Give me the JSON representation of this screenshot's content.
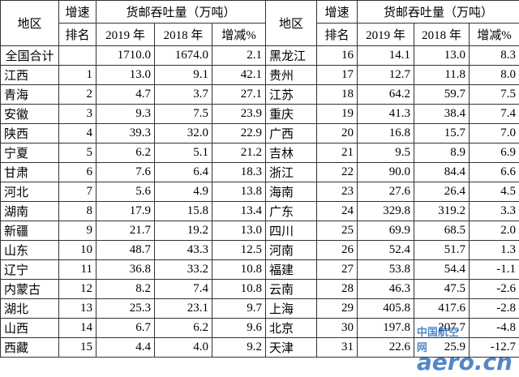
{
  "table": {
    "header": {
      "region": "地区",
      "rank_top": "增速",
      "rank_bottom": "排名",
      "group": "货邮吞吐量（万吨）",
      "y2019": "2019 年",
      "y2018": "2018 年",
      "change": "增减%"
    },
    "rows": [
      [
        "全国合计",
        "",
        "1710.0",
        "1674.0",
        "2.1",
        "黑龙江",
        "16",
        "14.1",
        "13.0",
        "8.3"
      ],
      [
        "江西",
        "1",
        "13.0",
        "9.1",
        "42.1",
        "贵州",
        "17",
        "12.7",
        "11.8",
        "8.0"
      ],
      [
        "青海",
        "2",
        "4.7",
        "3.7",
        "27.1",
        "江苏",
        "18",
        "64.2",
        "59.7",
        "7.5"
      ],
      [
        "安徽",
        "3",
        "9.3",
        "7.5",
        "23.9",
        "重庆",
        "19",
        "41.3",
        "38.4",
        "7.4"
      ],
      [
        "陕西",
        "4",
        "39.3",
        "32.0",
        "22.9",
        "广西",
        "20",
        "16.8",
        "15.7",
        "7.0"
      ],
      [
        "宁夏",
        "5",
        "6.2",
        "5.1",
        "21.2",
        "吉林",
        "21",
        "9.5",
        "8.9",
        "6.9"
      ],
      [
        "甘肃",
        "6",
        "7.6",
        "6.4",
        "18.3",
        "浙江",
        "22",
        "90.0",
        "84.4",
        "6.6"
      ],
      [
        "河北",
        "7",
        "5.6",
        "4.9",
        "13.8",
        "海南",
        "23",
        "27.6",
        "26.4",
        "4.5"
      ],
      [
        "湖南",
        "8",
        "17.9",
        "15.8",
        "13.4",
        "广东",
        "24",
        "329.8",
        "319.2",
        "3.3"
      ],
      [
        "新疆",
        "9",
        "21.7",
        "19.2",
        "13.0",
        "四川",
        "25",
        "69.9",
        "68.5",
        "2.0"
      ],
      [
        "山东",
        "10",
        "48.7",
        "43.3",
        "12.5",
        "河南",
        "26",
        "52.4",
        "51.7",
        "1.3"
      ],
      [
        "辽宁",
        "11",
        "36.8",
        "33.2",
        "10.8",
        "福建",
        "27",
        "53.8",
        "54.4",
        "-1.1"
      ],
      [
        "内蒙古",
        "12",
        "8.2",
        "7.4",
        "10.8",
        "云南",
        "28",
        "46.3",
        "47.5",
        "-2.6"
      ],
      [
        "湖北",
        "13",
        "25.3",
        "23.1",
        "9.7",
        "上海",
        "29",
        "405.8",
        "417.6",
        "-2.8"
      ],
      [
        "山西",
        "14",
        "6.7",
        "6.2",
        "9.6",
        "北京",
        "30",
        "197.8",
        "207.7",
        "-4.8"
      ],
      [
        "西藏",
        "15",
        "4.4",
        "4.0",
        "9.2",
        "天津",
        "31",
        "22.6",
        "25.9",
        "-12.7"
      ]
    ]
  },
  "watermark": {
    "cn": "中国航空网",
    "en": "aero.cn"
  }
}
